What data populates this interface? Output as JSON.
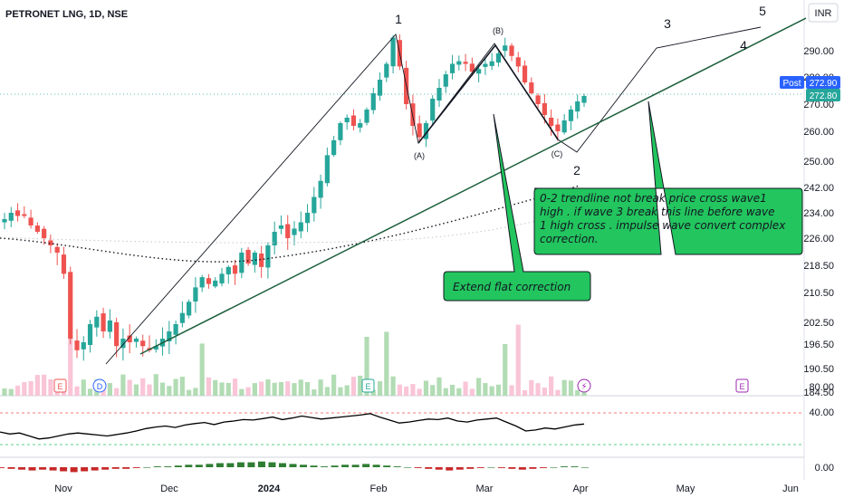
{
  "header": {
    "symbol": "PETRONET LNG, 1D, NSE"
  },
  "currency_badge": "INR",
  "post_badge": "Post",
  "price_tags": {
    "post": "272.90",
    "last": "272.80"
  },
  "colors": {
    "up": "#26a69a",
    "down": "#ef5350",
    "annotation_green": "#22c55e",
    "trend_line": "#1b5e3b",
    "rsi_line": "#000000",
    "grid": "#f0f3fa",
    "price_tag": "#2962ff"
  },
  "event_markers": [
    "E",
    "D",
    "E",
    "E"
  ],
  "chart_data": [
    {
      "type": "candlestick",
      "x_labels": [
        "Nov",
        "Dec",
        "2024",
        "Feb",
        "Mar",
        "Apr",
        "May",
        "Jun"
      ],
      "y_ticks": [
        "290.00",
        "280.00",
        "270.00",
        "260.00",
        "250.00",
        "242.00",
        "234.00",
        "226.00",
        "218.50",
        "210.50",
        "202.50",
        "196.50",
        "190.50",
        "184.50"
      ],
      "y_values": [
        290,
        280,
        270,
        260,
        250,
        242,
        234,
        226,
        218.5,
        210.5,
        202.5,
        196.5,
        190.5,
        184.5
      ],
      "close_series": [
        232,
        234,
        233,
        233,
        230,
        228,
        226,
        224,
        222,
        216,
        198,
        195,
        197,
        202,
        204,
        200,
        203,
        196,
        198,
        197,
        198,
        196,
        195,
        196,
        198,
        200,
        202,
        205,
        208,
        212,
        215,
        213,
        214,
        216,
        218,
        216,
        222,
        219,
        222,
        218,
        224,
        228,
        230,
        226,
        229,
        231,
        234,
        239,
        244,
        252,
        257,
        263,
        265,
        262,
        263,
        268,
        274,
        279,
        285,
        295,
        284,
        270,
        262,
        258,
        263,
        272,
        276,
        281,
        285,
        286,
        285,
        282,
        283,
        285,
        286,
        289,
        292,
        288,
        284,
        278,
        274,
        270,
        266,
        262,
        260,
        264,
        268,
        271,
        273
      ],
      "wave_labels": [
        "1",
        "(A)",
        "(B)",
        "(C)",
        "2",
        "3",
        "4",
        "5"
      ],
      "annotations": [
        "0-2 trendline not break price cross wave1 high . if wave 3 break this line before wave 1 high cross . impulse wave convert complex correction.",
        "Extend flat correction"
      ]
    },
    {
      "type": "line",
      "name": "RSI",
      "y_ticks": [
        "80.00",
        "40.00"
      ],
      "values": [
        38,
        34,
        36,
        30,
        24,
        26,
        30,
        34,
        36,
        34,
        32,
        30,
        33,
        36,
        40,
        45,
        48,
        50,
        47,
        52,
        55,
        57,
        53,
        58,
        60,
        63,
        62,
        65,
        68,
        63,
        66,
        70,
        67,
        64,
        66,
        68,
        70,
        72,
        75,
        68,
        62,
        56,
        58,
        61,
        64,
        63,
        66,
        60,
        58,
        62,
        64,
        66,
        58,
        50,
        40,
        42,
        46,
        44,
        48,
        52,
        54
      ]
    },
    {
      "type": "bar",
      "name": "Histogram",
      "y_ticks": [
        "0.00"
      ],
      "values": [
        -1,
        -2,
        -3,
        -4,
        -3,
        -4,
        -5,
        -6,
        -5,
        -4,
        -3,
        -2,
        -2,
        -1,
        0,
        1,
        1,
        2,
        3,
        3,
        4,
        5,
        5,
        6,
        6,
        7,
        6,
        5,
        4,
        3,
        2,
        1,
        2,
        3,
        3,
        4,
        3,
        2,
        1,
        0,
        -1,
        -2,
        -3,
        -4,
        -3,
        -2,
        -1,
        0,
        -1,
        -2,
        -3,
        -2,
        -1,
        0,
        1,
        1,
        0
      ]
    }
  ]
}
